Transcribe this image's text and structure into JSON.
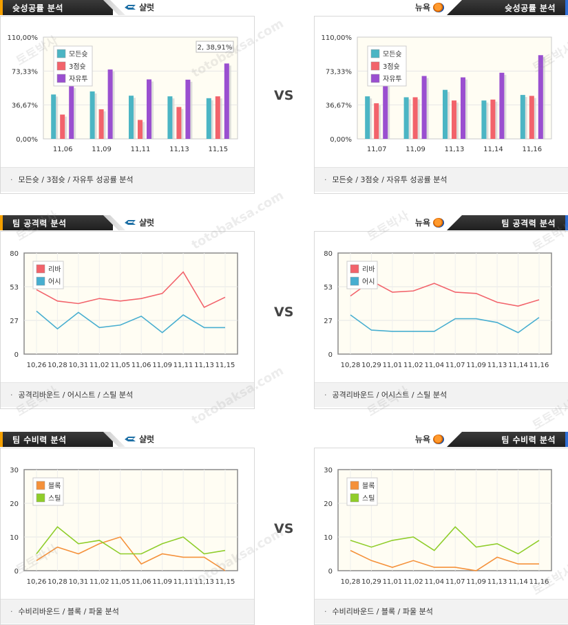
{
  "sections": [
    {
      "title": "슛성공률 분석",
      "left": {
        "team": "샬럿",
        "caption": "모든슛 / 3점슛 / 자유투 성공률 분석",
        "chart": {
          "type": "bar",
          "categories": [
            "11,06",
            "11,09",
            "11,11",
            "11,13",
            "11,15"
          ],
          "series": [
            {
              "name": "모든슛",
              "color": "#4bb5c4",
              "values": [
                48.0,
                51.3,
                46.7,
                46.0,
                44.0
              ]
            },
            {
              "name": "3점슛",
              "color": "#f2636b",
              "values": [
                26.3,
                32.0,
                20.5,
                34.5,
                46.0
              ]
            },
            {
              "name": "자유투",
              "color": "#9a4fd0",
              "values": [
                57.1,
                75.0,
                64.3,
                64.0,
                81.5
              ]
            }
          ],
          "yticks": [
            "110,00%",
            "73,33%",
            "36,67%",
            "0,00%"
          ],
          "ylim": [
            0,
            110
          ],
          "tooltip": "2, 38,91%"
        }
      },
      "right": {
        "team": "뉴욕",
        "caption": "모든슛 / 3점슛 / 자유투 성공률 분석",
        "chart": {
          "type": "bar",
          "categories": [
            "11,07",
            "11,09",
            "11,13",
            "11,14",
            "11,16"
          ],
          "series": [
            {
              "name": "모든슛",
              "color": "#4bb5c4",
              "values": [
                46.0,
                45.0,
                53.0,
                41.5,
                47.5
              ]
            },
            {
              "name": "3점슛",
              "color": "#f2636b",
              "values": [
                38.5,
                45.0,
                41.5,
                42.5,
                46.5
              ]
            },
            {
              "name": "자유투",
              "color": "#9a4fd0",
              "values": [
                73.0,
                68.0,
                66.5,
                71.5,
                90.5
              ]
            }
          ],
          "yticks": [
            "110,00%",
            "73,33%",
            "36,67%",
            "0,00%"
          ],
          "ylim": [
            0,
            110
          ]
        }
      }
    },
    {
      "title": "팀 공격력 분석",
      "left": {
        "team": "샬럿",
        "caption": "공격리바운드 / 어시스트 / 스틸 분석",
        "chart": {
          "type": "line",
          "categories": [
            "10,26",
            "10,28",
            "10,31",
            "11,02",
            "11,05",
            "11,06",
            "11,09",
            "11,11",
            "11,13",
            "11,15"
          ],
          "series": [
            {
              "name": "리바",
              "color": "#f2636b",
              "values": [
                51,
                42,
                40,
                44,
                42,
                44,
                48,
                65,
                37,
                45
              ]
            },
            {
              "name": "어시",
              "color": "#47aed0",
              "values": [
                34,
                20,
                33,
                21,
                23,
                30,
                17,
                31,
                21,
                21
              ]
            }
          ],
          "yticks": [
            "80",
            "53",
            "27",
            "0"
          ],
          "ylim": [
            0,
            80
          ]
        }
      },
      "right": {
        "team": "뉴욕",
        "caption": "공격리바운드 / 어시스트 / 스틸 분석",
        "chart": {
          "type": "line",
          "categories": [
            "10,28",
            "10,29",
            "11,01",
            "11,02",
            "11,04",
            "11,07",
            "11,09",
            "11,13",
            "11,14",
            "11,16"
          ],
          "series": [
            {
              "name": "리바",
              "color": "#f2636b",
              "values": [
                46,
                58,
                49,
                50,
                56,
                49,
                48,
                41,
                38,
                43
              ]
            },
            {
              "name": "어시",
              "color": "#47aed0",
              "values": [
                31,
                19,
                18,
                18,
                18,
                28,
                28,
                25,
                17,
                29
              ]
            }
          ],
          "yticks": [
            "80",
            "53",
            "27",
            "0"
          ],
          "ylim": [
            0,
            80
          ]
        }
      }
    },
    {
      "title": "팀 수비력 분석",
      "left": {
        "team": "샬럿",
        "caption": "수비리바운드 / 블록 / 파울 분석",
        "chart": {
          "type": "line",
          "categories": [
            "10,26",
            "10,28",
            "10,31",
            "11,02",
            "11,05",
            "11,06",
            "11,09",
            "11,11",
            "11,13",
            "11,15"
          ],
          "series": [
            {
              "name": "블록",
              "color": "#f5913a",
              "values": [
                3,
                7,
                5,
                8,
                10,
                2,
                5,
                4,
                4,
                0
              ]
            },
            {
              "name": "스틸",
              "color": "#8fcd2a",
              "values": [
                5,
                13,
                8,
                9,
                5,
                5,
                8,
                10,
                5,
                6
              ]
            }
          ],
          "yticks": [
            "30",
            "20",
            "10",
            "0"
          ],
          "ylim": [
            0,
            30
          ]
        }
      },
      "right": {
        "team": "뉴욕",
        "caption": "수비리바운드 / 블록 / 파울 분석",
        "chart": {
          "type": "line",
          "categories": [
            "10,28",
            "10,29",
            "11,01",
            "11,02",
            "11,04",
            "11,07",
            "11,09",
            "11,13",
            "11,14",
            "11,16"
          ],
          "series": [
            {
              "name": "블록",
              "color": "#f5913a",
              "values": [
                6,
                3,
                1,
                3,
                1,
                1,
                0,
                4,
                2,
                2
              ]
            },
            {
              "name": "스틸",
              "color": "#8fcd2a",
              "values": [
                9,
                7,
                9,
                10,
                6,
                13,
                7,
                8,
                5,
                9
              ]
            }
          ],
          "yticks": [
            "30",
            "20",
            "10",
            "0"
          ],
          "ylim": [
            0,
            30
          ]
        }
      }
    }
  ],
  "vs_label": "VS",
  "watermark": [
    "토토박사",
    "totobaksa.com"
  ]
}
